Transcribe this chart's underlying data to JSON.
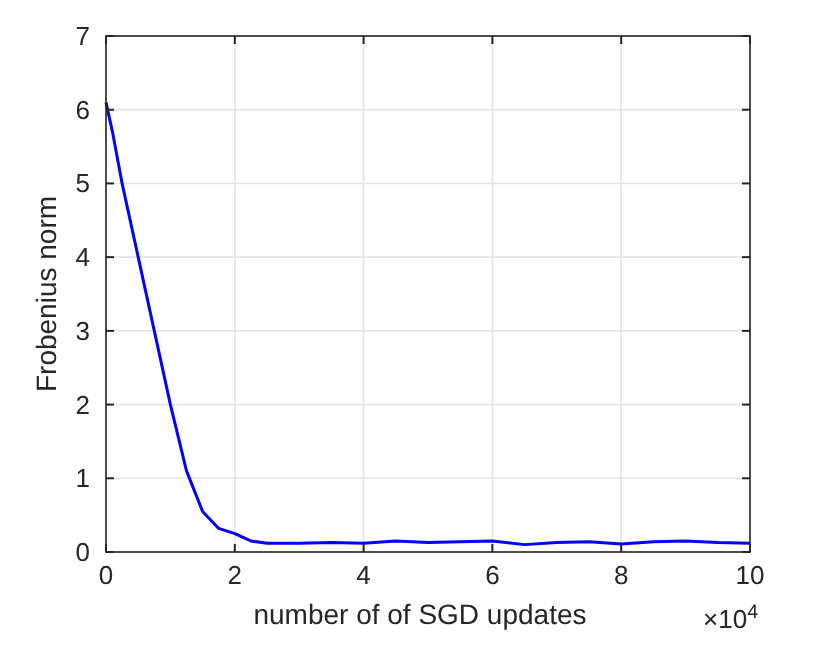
{
  "chart_data": {
    "type": "line",
    "xlabel": "number of of SGD updates",
    "ylabel": "Frobenius norm",
    "annotations": [
      "×10$^{4}$"
    ],
    "xlim": [
      0,
      10
    ],
    "ylim": [
      0,
      7
    ],
    "xticks": [
      0,
      2,
      4,
      6,
      8,
      10
    ],
    "yticks": [
      0,
      1,
      2,
      3,
      4,
      5,
      6,
      7
    ],
    "grid": true,
    "series": [
      {
        "color": "#0000ff",
        "x": [
          0,
          0.1,
          0.25,
          0.5,
          0.75,
          1,
          1.25,
          1.5,
          1.75,
          2,
          2.25,
          2.5,
          3,
          3.5,
          4,
          4.5,
          5,
          5.5,
          6,
          6.5,
          7,
          7.5,
          8,
          8.5,
          9,
          9.5,
          10
        ],
        "values": [
          6.1,
          5.7,
          5.0,
          4.0,
          3.0,
          2.0,
          1.1,
          0.55,
          0.32,
          0.25,
          0.15,
          0.12,
          0.12,
          0.13,
          0.12,
          0.15,
          0.13,
          0.14,
          0.15,
          0.1,
          0.13,
          0.14,
          0.11,
          0.14,
          0.15,
          0.13,
          0.12
        ]
      }
    ]
  }
}
